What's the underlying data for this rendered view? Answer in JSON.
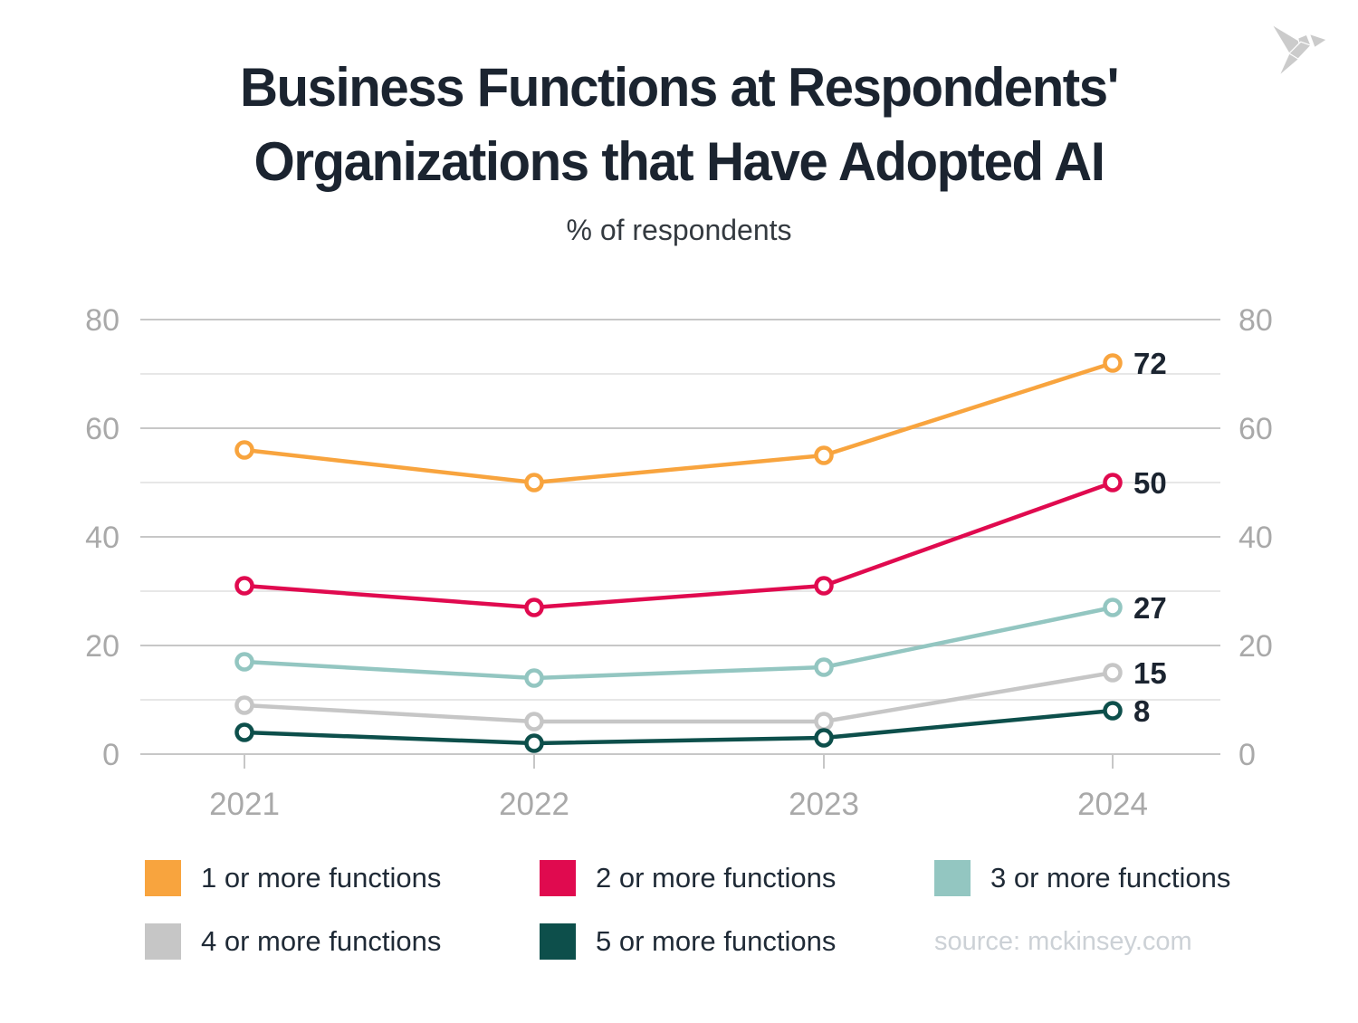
{
  "header": {
    "title_line1": "Business Functions at Respondents'",
    "title_line2": "Organizations that Have Adopted AI",
    "subtitle": "% of respondents"
  },
  "logo": {
    "icon": "origami-bird-icon",
    "color": "#cbcbcb"
  },
  "source": {
    "label": "source: mckinsey.com"
  },
  "chart_data": {
    "type": "line",
    "categories": [
      "2021",
      "2022",
      "2023",
      "2024"
    ],
    "series": [
      {
        "name": "1 or more functions",
        "color": "#F8A43E",
        "values": [
          56,
          50,
          55,
          72
        ],
        "end_label": "72"
      },
      {
        "name": "2 or more functions",
        "color": "#E00A4F",
        "values": [
          31,
          27,
          31,
          50
        ],
        "end_label": "50"
      },
      {
        "name": "3 or more functions",
        "color": "#93C6C1",
        "values": [
          17,
          14,
          16,
          27
        ],
        "end_label": "27"
      },
      {
        "name": "4 or more functions",
        "color": "#C6C6C6",
        "values": [
          9,
          6,
          6,
          15
        ],
        "end_label": "15"
      },
      {
        "name": "5 or more functions",
        "color": "#0D4F4B",
        "values": [
          4,
          2,
          3,
          8
        ],
        "end_label": "8"
      }
    ],
    "title": "Business Functions at Respondents' Organizations that Have Adopted AI",
    "subtitle": "% of respondents",
    "xlabel": "",
    "ylabel": "",
    "ylim": [
      0,
      80
    ],
    "yticks_major": [
      0,
      20,
      40,
      60,
      80
    ],
    "yticks_minor": [
      10,
      30,
      50,
      70
    ],
    "grid": true,
    "legend_position": "bottom",
    "axis_tick_color": "#a9a9a9",
    "major_grid_color": "#c7c7c7",
    "minor_grid_color": "#e7e7e7",
    "value_label_color": "#1B2430",
    "marker_fill": "#ffffff"
  }
}
